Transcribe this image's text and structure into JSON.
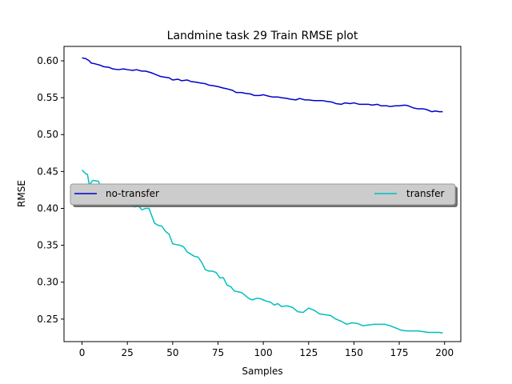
{
  "chart_data": {
    "type": "line",
    "title": "Landmine task 29 Train RMSE plot",
    "xlabel": "Samples",
    "ylabel": "RMSE",
    "xlim": [
      -9.95,
      208.95
    ],
    "ylim": [
      0.2195,
      0.6195
    ],
    "xticks": [
      0,
      25,
      50,
      75,
      100,
      125,
      150,
      175,
      200
    ],
    "yticks": [
      0.25,
      0.3,
      0.35,
      0.4,
      0.45,
      0.5,
      0.55,
      0.6
    ],
    "ytick_labels": [
      "0.25",
      "0.30",
      "0.35",
      "0.40",
      "0.45",
      "0.50",
      "0.55",
      "0.60"
    ],
    "grid": false,
    "legend": {
      "placement": "center",
      "columns": 2
    },
    "series": [
      {
        "name": "no-transfer",
        "color": "#0000cc",
        "x": [
          0,
          2,
          4,
          5,
          7,
          10,
          12,
          15,
          17,
          20,
          23,
          25,
          28,
          30,
          33,
          35,
          38,
          40,
          43,
          45,
          48,
          50,
          53,
          55,
          58,
          60,
          63,
          65,
          68,
          70,
          73,
          75,
          78,
          80,
          83,
          85,
          88,
          90,
          93,
          95,
          98,
          100,
          103,
          105,
          108,
          110,
          113,
          115,
          118,
          120,
          123,
          125,
          128,
          130,
          133,
          135,
          138,
          140,
          143,
          145,
          148,
          150,
          153,
          155,
          158,
          160,
          163,
          165,
          168,
          170,
          173,
          175,
          178,
          180,
          183,
          185,
          188,
          190,
          193,
          195,
          197,
          199
        ],
        "y": [
          0.604,
          0.603,
          0.6,
          0.597,
          0.596,
          0.594,
          0.592,
          0.591,
          0.589,
          0.588,
          0.589,
          0.588,
          0.587,
          0.588,
          0.586,
          0.586,
          0.584,
          0.582,
          0.579,
          0.578,
          0.577,
          0.574,
          0.575,
          0.573,
          0.574,
          0.572,
          0.571,
          0.57,
          0.569,
          0.567,
          0.566,
          0.565,
          0.563,
          0.562,
          0.56,
          0.557,
          0.557,
          0.556,
          0.555,
          0.553,
          0.553,
          0.554,
          0.552,
          0.551,
          0.551,
          0.55,
          0.549,
          0.548,
          0.547,
          0.549,
          0.547,
          0.547,
          0.546,
          0.546,
          0.546,
          0.545,
          0.544,
          0.542,
          0.541,
          0.543,
          0.542,
          0.543,
          0.541,
          0.541,
          0.541,
          0.54,
          0.541,
          0.539,
          0.539,
          0.538,
          0.539,
          0.539,
          0.54,
          0.539,
          0.536,
          0.535,
          0.535,
          0.534,
          0.531,
          0.532,
          0.531,
          0.531
        ]
      },
      {
        "name": "transfer",
        "color": "#00bfbf",
        "x": [
          0,
          2,
          3,
          4,
          6,
          8,
          9,
          11,
          13,
          15,
          17,
          19,
          21,
          23,
          25,
          27,
          29,
          31,
          33,
          35,
          37,
          38,
          40,
          42,
          44,
          46,
          48,
          50,
          52,
          54,
          56,
          58,
          60,
          62,
          64,
          66,
          68,
          70,
          72,
          74,
          76,
          78,
          80,
          82,
          84,
          86,
          88,
          90,
          92,
          94,
          96,
          98,
          100,
          102,
          104,
          106,
          108,
          110,
          113,
          116,
          119,
          122,
          125,
          128,
          131,
          134,
          137,
          140,
          143,
          146,
          149,
          152,
          155,
          158,
          161,
          164,
          167,
          170,
          173,
          176,
          179,
          182,
          185,
          188,
          191,
          194,
          197,
          199
        ],
        "y": [
          0.452,
          0.447,
          0.446,
          0.432,
          0.438,
          0.437,
          0.437,
          0.425,
          0.427,
          0.425,
          0.424,
          0.419,
          0.415,
          0.409,
          0.405,
          0.406,
          0.402,
          0.404,
          0.398,
          0.4,
          0.4,
          0.393,
          0.38,
          0.377,
          0.376,
          0.369,
          0.365,
          0.352,
          0.351,
          0.35,
          0.348,
          0.341,
          0.338,
          0.335,
          0.334,
          0.327,
          0.317,
          0.315,
          0.315,
          0.313,
          0.306,
          0.306,
          0.296,
          0.294,
          0.288,
          0.287,
          0.286,
          0.282,
          0.278,
          0.276,
          0.278,
          0.278,
          0.276,
          0.274,
          0.273,
          0.269,
          0.271,
          0.267,
          0.268,
          0.266,
          0.26,
          0.259,
          0.265,
          0.262,
          0.257,
          0.256,
          0.255,
          0.25,
          0.247,
          0.243,
          0.245,
          0.244,
          0.241,
          0.242,
          0.243,
          0.243,
          0.243,
          0.241,
          0.238,
          0.235,
          0.234,
          0.234,
          0.234,
          0.233,
          0.232,
          0.232,
          0.232,
          0.231
        ]
      }
    ]
  }
}
